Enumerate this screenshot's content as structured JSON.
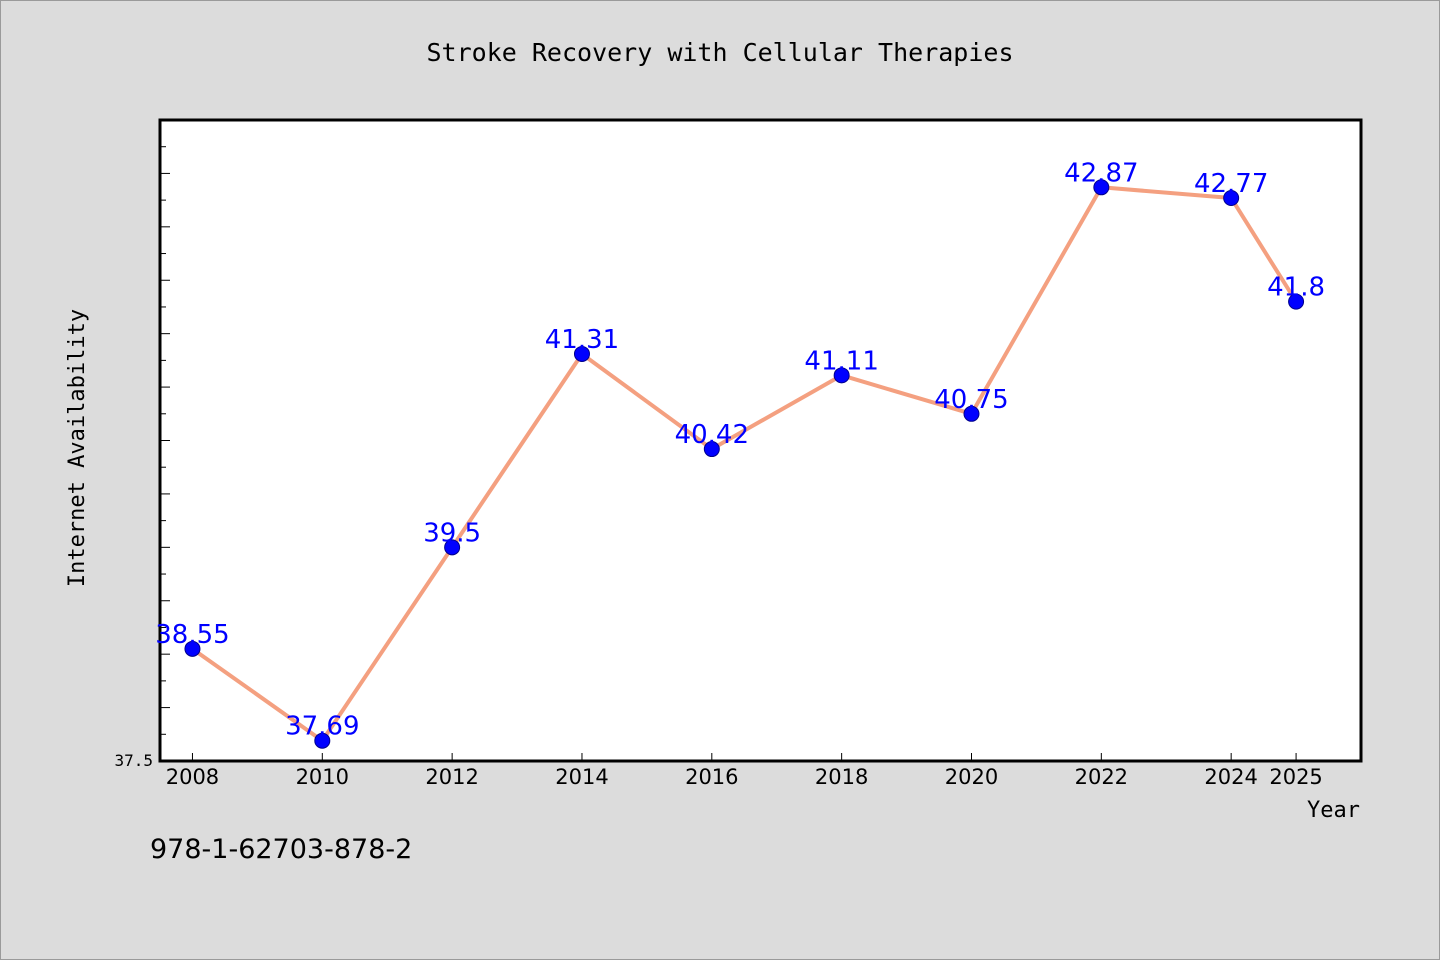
{
  "chart_data": {
    "type": "line",
    "title": "Stroke Recovery with Cellular Therapies",
    "xlabel": "Year",
    "ylabel": "Internet Availability",
    "x": [
      "2008",
      "2010",
      "2012",
      "2014",
      "2016",
      "2018",
      "2020",
      "2022",
      "2024",
      "2025"
    ],
    "series": [
      {
        "values": [
          38.55,
          37.69,
          39.5,
          41.31,
          40.42,
          41.11,
          40.75,
          42.87,
          42.77,
          41.8
        ]
      }
    ],
    "data_labels": [
      "38.55",
      "37.69",
      "39.5",
      "41.31",
      "40.42",
      "41.11",
      "40.75",
      "42.87",
      "42.77",
      "41.8"
    ],
    "ylim": [
      37.5,
      43.5
    ],
    "y_tick_label": "37.5",
    "grid": false,
    "line_color": "#f4a080",
    "marker_color": "#0000ff",
    "label_color": "#0000ff",
    "background_color": "#dcdcdc",
    "plot_background_color": "#ffffff"
  },
  "footer": {
    "isbn": "978-1-62703-878-2"
  }
}
